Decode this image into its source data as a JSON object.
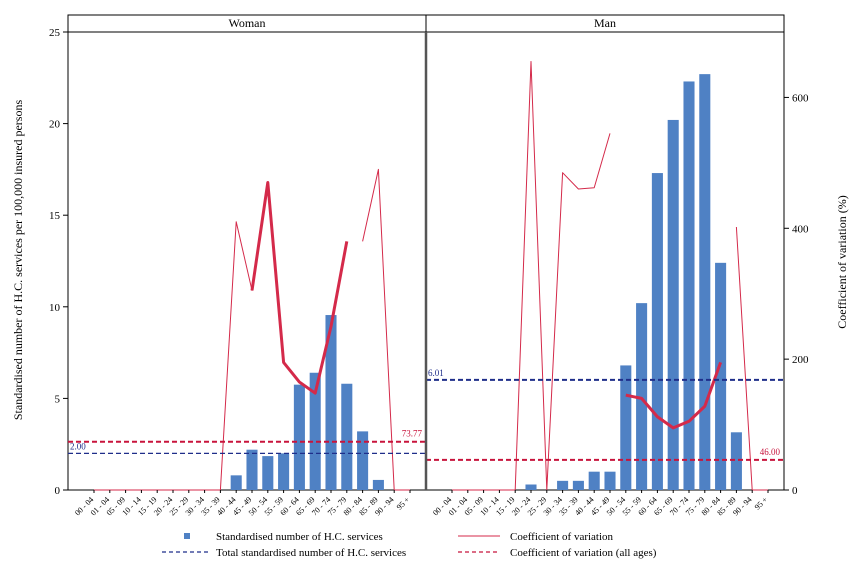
{
  "chart_data": {
    "type": "bar",
    "ylabel": "Standardised number of H.C. services per 100,000 insured persons",
    "y2label": "Coefficient of variation (%)",
    "ylim": [
      0,
      25
    ],
    "y2lim": [
      0,
      700
    ],
    "yticks": [
      "0",
      "5",
      "10",
      "15",
      "20",
      "25"
    ],
    "y2ticks": [
      "0",
      "200",
      "400",
      "600"
    ],
    "categories": [
      "00-04",
      "01-04",
      "05-09",
      "10-14",
      "15-19",
      "20-24",
      "25-29",
      "30-34",
      "35-39",
      "40-44",
      "45-49",
      "50-54",
      "55-59",
      "60-64",
      "65-69",
      "70-74",
      "75-79",
      "80-84",
      "85-89",
      "90-94",
      "95+"
    ],
    "category_labels": [
      "00 - 04",
      "01 - 04",
      "05 - 09",
      "10 - 14",
      "15 - 19",
      "20 - 24",
      "25 - 29",
      "30 - 34",
      "35 - 39",
      "40 - 44",
      "45 - 49",
      "50 - 54",
      "55 - 59",
      "60 - 64",
      "65 - 69",
      "70 - 74",
      "75 - 79",
      "80 - 84",
      "85 - 89",
      "90 - 94",
      "95 +"
    ],
    "panels": [
      {
        "title": "Woman",
        "bars": [
          0,
          0,
          0,
          0,
          0,
          0,
          0,
          0,
          0,
          0.8,
          2.2,
          1.85,
          2.0,
          5.75,
          6.4,
          9.55,
          5.8,
          3.2,
          0.55,
          0,
          0
        ],
        "cv_thin": [
          0,
          0,
          0,
          0,
          0,
          0,
          0,
          0,
          0,
          410,
          305,
          470,
          null,
          null,
          null,
          null,
          null,
          380,
          490,
          0,
          0
        ],
        "cv_thick": [
          null,
          null,
          null,
          null,
          null,
          null,
          null,
          null,
          null,
          null,
          305,
          470,
          195,
          165,
          148,
          250,
          380,
          null,
          null,
          null,
          null
        ],
        "total": 2.0,
        "total_label": "2.00",
        "cv_all": 73.77,
        "cv_all_label": "73.77"
      },
      {
        "title": "Man",
        "bars": [
          0,
          0,
          0,
          0,
          0,
          0.3,
          0,
          0.5,
          0.5,
          1.0,
          1.0,
          6.8,
          10.2,
          17.3,
          20.2,
          22.3,
          22.7,
          12.4,
          3.15,
          0,
          0
        ],
        "cv_thin": [
          0,
          0,
          0,
          0,
          0,
          655,
          0,
          485,
          460,
          462,
          545,
          null,
          null,
          null,
          null,
          null,
          null,
          null,
          402,
          0,
          0
        ],
        "cv_thick": [
          null,
          null,
          null,
          null,
          null,
          null,
          null,
          null,
          null,
          null,
          null,
          145,
          140,
          112,
          95,
          105,
          128,
          195,
          null,
          null,
          null
        ],
        "total": 6.01,
        "total_label": "6.01",
        "cv_all": 46.0,
        "cv_all_label": "46.00"
      }
    ],
    "legend": [
      {
        "label": "Standardised number of H.C. services",
        "kind": "bar"
      },
      {
        "label": "Coefficient of variation",
        "kind": "line"
      },
      {
        "label": "Total standardised number of H.C. services",
        "kind": "dash-blue"
      },
      {
        "label": "Coefficient of variation (all ages)",
        "kind": "dash-red"
      }
    ],
    "colors": {
      "bar": "#4f81c4",
      "cv": "#d42a4a",
      "total_line": "#1f2e8a",
      "cv_all_line": "#c8143c"
    }
  }
}
